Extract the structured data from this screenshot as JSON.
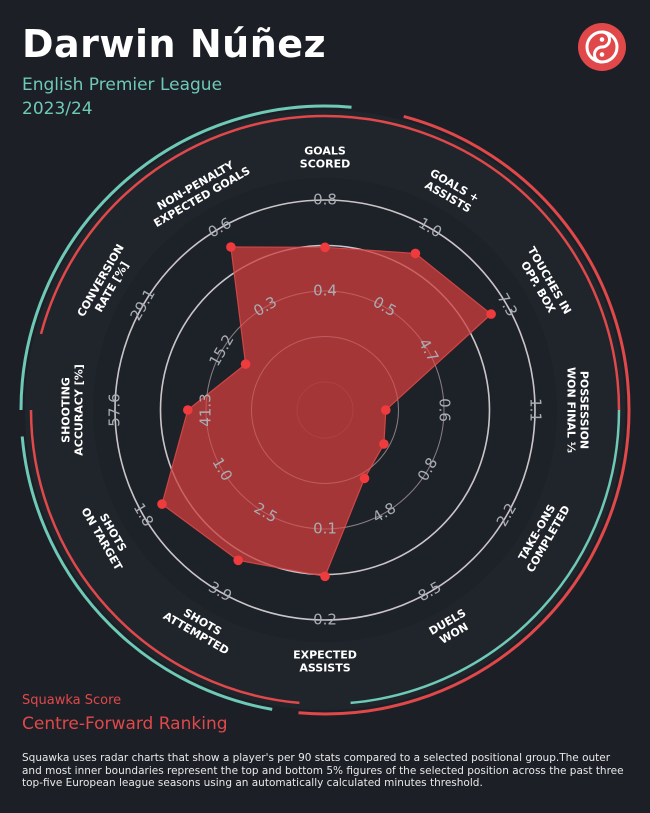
{
  "header": {
    "player_name": "Darwin Núñez",
    "league": "English Premier League",
    "season": "2023/24"
  },
  "footer": {
    "score_label": "Squawka Score",
    "ranking_label": "Centre-Forward Ranking",
    "note": "Squawka uses radar charts that show a player's per 90 stats compared to a selected positional group.The outer and most inner boundaries represent the top and bottom 5% figures of the selected position across the past three top-five European league seasons using an automatically calculated minutes threshold."
  },
  "colors": {
    "background": "#1c2026",
    "teal": "#6ec9b6",
    "red": "#e0484a",
    "fill": "#c23b3c"
  },
  "chart_data": {
    "type": "radar",
    "metrics": [
      {
        "name": "GOALS SCORED",
        "lines": [
          "GOALS",
          "SCORED"
        ],
        "ticks": [
          "0.4",
          "0.8"
        ],
        "percentile": 0.74
      },
      {
        "name": "GOALS + ASSISTS",
        "lines": [
          "GOALS +",
          "ASSISTS"
        ],
        "ticks": [
          "0.5",
          "1.0"
        ],
        "percentile": 0.84
      },
      {
        "name": "TOUCHES IN OPP. BOX",
        "lines": [
          "TOUCHES IN",
          "OPP. BOX"
        ],
        "ticks": [
          "4.7",
          "7.3"
        ],
        "percentile": 0.9
      },
      {
        "name": "POSSESSION WON FINAL ⅓",
        "lines": [
          "POSSESSION",
          "WON FINAL ⅓"
        ],
        "ticks": [
          "0.6",
          "1.1"
        ],
        "percentile": 0.18
      },
      {
        "name": "TAKE-ONS COMPLETED",
        "lines": [
          "TAKE-ONS",
          "COMPLETED"
        ],
        "ticks": [
          "0.8",
          "2.2"
        ],
        "percentile": 0.22
      },
      {
        "name": "DUELS WON",
        "lines": [
          "DUELS",
          "WON"
        ],
        "ticks": [
          "4.8",
          "8.5"
        ],
        "percentile": 0.28
      },
      {
        "name": "EXPECTED ASSISTS",
        "lines": [
          "EXPECTED",
          "ASSISTS"
        ],
        "ticks": [
          "0.1",
          "0.2"
        ],
        "percentile": 0.76
      },
      {
        "name": "SHOTS ATTEMPTED",
        "lines": [
          "SHOTS",
          "ATTEMPTED"
        ],
        "ticks": [
          "2.5",
          "3.9"
        ],
        "percentile": 0.8
      },
      {
        "name": "SHOTS ON TARGET",
        "lines": [
          "SHOTS",
          "ON TARGET"
        ],
        "ticks": [
          "1.0",
          "1.8"
        ],
        "percentile": 0.88
      },
      {
        "name": "SHOOTING ACCURACY [%]",
        "lines": [
          "SHOOTING",
          "ACCURACY [%]"
        ],
        "ticks": [
          "41.3",
          "57.6"
        ],
        "percentile": 0.6
      },
      {
        "name": "CONVERSION RATE [%]",
        "lines": [
          "CONVERSION",
          "RATE [%]"
        ],
        "ticks": [
          "15.2",
          "29.1"
        ],
        "percentile": 0.35
      },
      {
        "name": "NON-PENALTY EXPECTED GOALS",
        "lines": [
          "NON-PENALTY",
          "EXPECTED GOALS"
        ],
        "ticks": [
          "0.3",
          "0.6"
        ],
        "percentile": 0.88
      }
    ]
  }
}
